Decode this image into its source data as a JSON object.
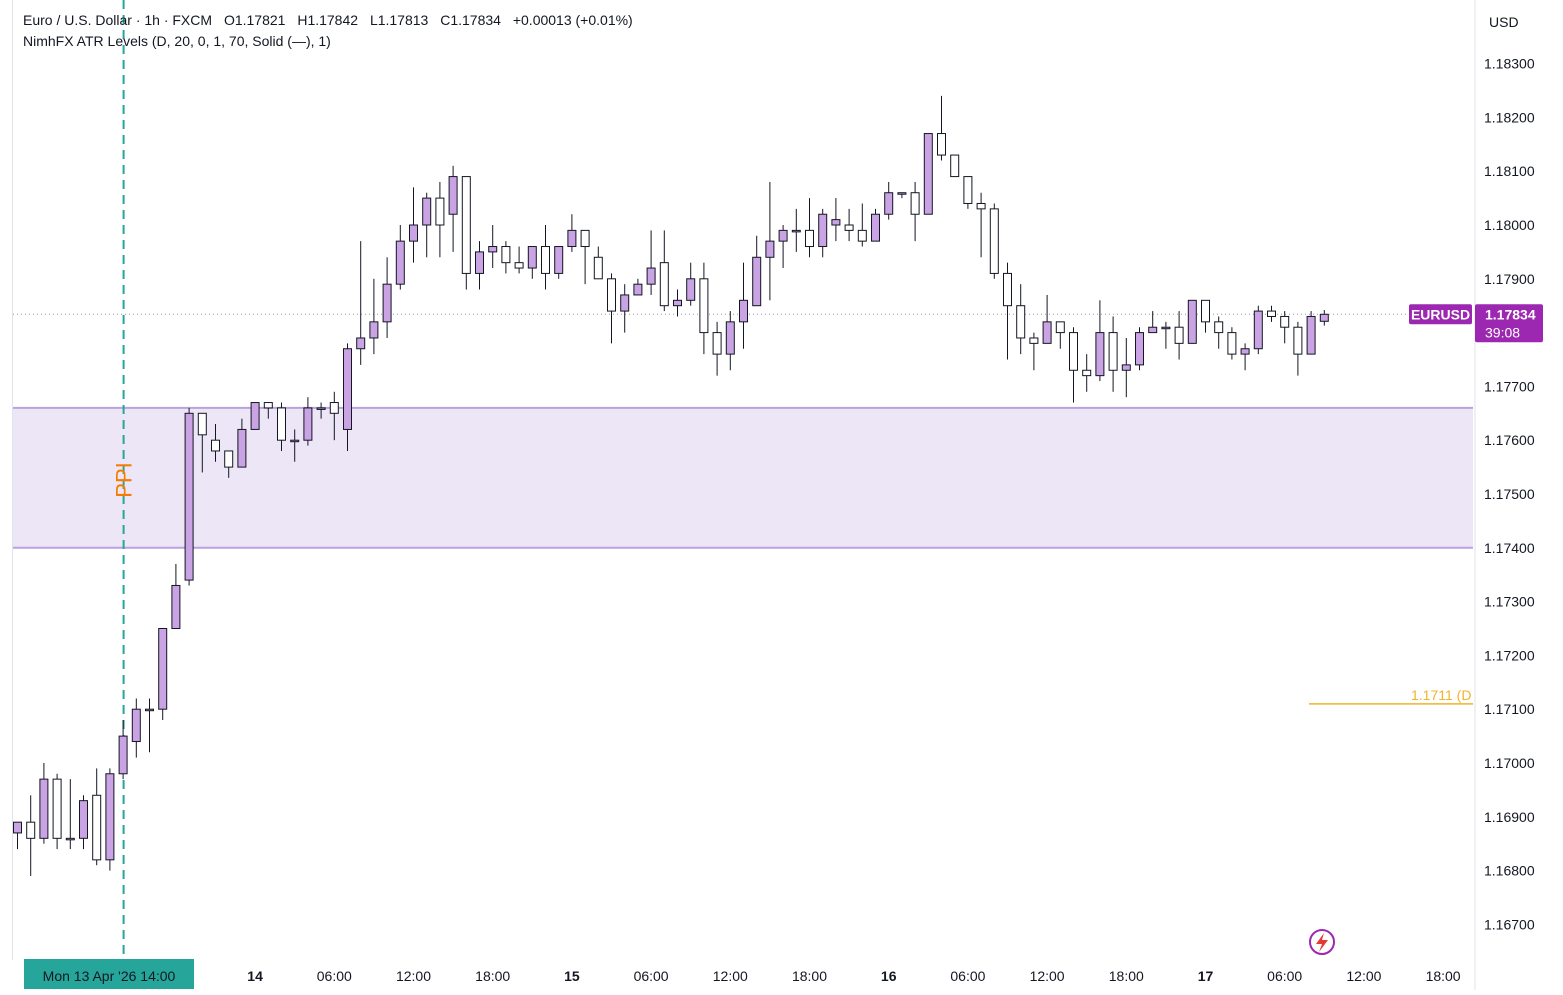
{
  "legend": {
    "symbol": "Euro / U.S. Dollar · 1h · FXCM",
    "open": "O1.17821",
    "high": "H1.17842",
    "low": "L1.17813",
    "close": "C1.17834",
    "change": "+0.00013 (+0.01%)",
    "indicator": "NimhFX ATR Levels (D, 20, 0, 1, 70, Solid (—), 1)"
  },
  "currency_label": "USD",
  "event_label": "PPI",
  "current_price": {
    "symbol": "EURUSD",
    "price": "1.17834",
    "countdown": "39:08"
  },
  "atr_level": {
    "value": 1.1711,
    "label": "1.1711 (D"
  },
  "colors": {
    "up_body": "#c9a3e3",
    "down_body": "#ffffff",
    "candle_border": "#131722",
    "zone_fill": "#ede6f7",
    "zone_line": "#b9a2dd",
    "accent_purple": "#9c27b0",
    "atr_line": "#f0b429",
    "event_line": "#26a69a",
    "event_text": "#f57c00",
    "axis_text": "#131722"
  },
  "chart_data": {
    "type": "candlestick",
    "instrument": "EURUSD",
    "timeframe": "1h",
    "ylim": [
      1.1662,
      1.1841
    ],
    "yticks": [
      1.167,
      1.168,
      1.169,
      1.17,
      1.171,
      1.172,
      1.173,
      1.174,
      1.175,
      1.176,
      1.177,
      1.178,
      1.179,
      1.18,
      1.181,
      1.182,
      1.183
    ],
    "ytick_labels": [
      "1.16700",
      "1.16800",
      "1.16900",
      "1.17000",
      "1.17100",
      "1.17200",
      "1.17300",
      "1.17400",
      "1.17500",
      "1.17600",
      "1.17700",
      "1.17800",
      "1.17900",
      "1.18000",
      "1.18100",
      "1.18200",
      "1.18300"
    ],
    "xticks": [
      {
        "bar": 8,
        "label": "Mon 13 Apr '26   14:00",
        "highlight": true
      },
      {
        "bar": 18,
        "label": "14",
        "bold": true
      },
      {
        "bar": 24,
        "label": "06:00"
      },
      {
        "bar": 30,
        "label": "12:00"
      },
      {
        "bar": 36,
        "label": "18:00"
      },
      {
        "bar": 42,
        "label": "15",
        "bold": true
      },
      {
        "bar": 48,
        "label": "06:00"
      },
      {
        "bar": 54,
        "label": "12:00"
      },
      {
        "bar": 60,
        "label": "18:00"
      },
      {
        "bar": 66,
        "label": "16",
        "bold": true
      },
      {
        "bar": 72,
        "label": "06:00"
      },
      {
        "bar": 78,
        "label": "12:00"
      },
      {
        "bar": 84,
        "label": "18:00"
      },
      {
        "bar": 90,
        "label": "17",
        "bold": true
      },
      {
        "bar": 96,
        "label": "06:00"
      },
      {
        "bar": 102,
        "label": "12:00"
      },
      {
        "bar": 108,
        "label": "18:00"
      }
    ],
    "zone": {
      "top": 1.1766,
      "bottom": 1.174
    },
    "event_bar": 8,
    "last_close": 1.17834,
    "candles": [
      [
        1.1687,
        1.1689,
        1.1684,
        1.1689
      ],
      [
        1.1689,
        1.1694,
        1.1679,
        1.1686
      ],
      [
        1.1686,
        1.17,
        1.1685,
        1.1697
      ],
      [
        1.1697,
        1.1698,
        1.1684,
        1.1686
      ],
      [
        1.1686,
        1.1697,
        1.1684,
        1.1686
      ],
      [
        1.1686,
        1.1694,
        1.1684,
        1.1693
      ],
      [
        1.1694,
        1.1699,
        1.1681,
        1.1682
      ],
      [
        1.1682,
        1.1699,
        1.168,
        1.1698
      ],
      [
        1.1698,
        1.1708,
        1.1697,
        1.1705
      ],
      [
        1.1704,
        1.1712,
        1.1701,
        1.171
      ],
      [
        1.171,
        1.1712,
        1.1702,
        1.171
      ],
      [
        1.171,
        1.1725,
        1.1708,
        1.1725
      ],
      [
        1.1725,
        1.1737,
        1.1725,
        1.1733
      ],
      [
        1.1734,
        1.1766,
        1.1733,
        1.1765
      ],
      [
        1.1765,
        1.1765,
        1.1754,
        1.1761
      ],
      [
        1.176,
        1.1763,
        1.1756,
        1.1758
      ],
      [
        1.1758,
        1.1758,
        1.1753,
        1.1755
      ],
      [
        1.1755,
        1.1764,
        1.1755,
        1.1762
      ],
      [
        1.1762,
        1.1767,
        1.1762,
        1.1767
      ],
      [
        1.1767,
        1.1767,
        1.1764,
        1.1766
      ],
      [
        1.1766,
        1.1767,
        1.1758,
        1.176
      ],
      [
        1.176,
        1.1762,
        1.1756,
        1.176
      ],
      [
        1.176,
        1.1768,
        1.1759,
        1.1766
      ],
      [
        1.1766,
        1.1767,
        1.1764,
        1.1766
      ],
      [
        1.1767,
        1.1769,
        1.176,
        1.1765
      ],
      [
        1.1762,
        1.1778,
        1.1758,
        1.1777
      ],
      [
        1.1777,
        1.1797,
        1.1774,
        1.1779
      ],
      [
        1.1779,
        1.179,
        1.1776,
        1.1782
      ],
      [
        1.1782,
        1.1794,
        1.1779,
        1.1789
      ],
      [
        1.1789,
        1.18,
        1.1788,
        1.1797
      ],
      [
        1.1797,
        1.1807,
        1.1793,
        1.18
      ],
      [
        1.18,
        1.1806,
        1.1794,
        1.1805
      ],
      [
        1.1805,
        1.1808,
        1.1794,
        1.18
      ],
      [
        1.1802,
        1.1811,
        1.1795,
        1.1809
      ],
      [
        1.1809,
        1.1809,
        1.1788,
        1.1791
      ],
      [
        1.1791,
        1.1797,
        1.1788,
        1.1795
      ],
      [
        1.1795,
        1.18,
        1.1792,
        1.1796
      ],
      [
        1.1796,
        1.1797,
        1.1791,
        1.1793
      ],
      [
        1.1793,
        1.1796,
        1.1791,
        1.1792
      ],
      [
        1.1792,
        1.1796,
        1.179,
        1.1796
      ],
      [
        1.1796,
        1.18,
        1.1788,
        1.1791
      ],
      [
        1.1791,
        1.1796,
        1.179,
        1.1796
      ],
      [
        1.1796,
        1.1802,
        1.1795,
        1.1799
      ],
      [
        1.1799,
        1.1799,
        1.1789,
        1.1796
      ],
      [
        1.1794,
        1.1796,
        1.179,
        1.179
      ],
      [
        1.179,
        1.1791,
        1.1778,
        1.1784
      ],
      [
        1.1784,
        1.1789,
        1.178,
        1.1787
      ],
      [
        1.1787,
        1.179,
        1.1787,
        1.1789
      ],
      [
        1.1789,
        1.1799,
        1.1787,
        1.1792
      ],
      [
        1.1793,
        1.1799,
        1.1784,
        1.1785
      ],
      [
        1.1785,
        1.1788,
        1.1783,
        1.1786
      ],
      [
        1.1786,
        1.1793,
        1.1785,
        1.179
      ],
      [
        1.179,
        1.1793,
        1.1776,
        1.178
      ],
      [
        1.178,
        1.1782,
        1.1772,
        1.1776
      ],
      [
        1.1776,
        1.1784,
        1.1773,
        1.1782
      ],
      [
        1.1782,
        1.1793,
        1.1777,
        1.1786
      ],
      [
        1.1785,
        1.1798,
        1.1785,
        1.1794
      ],
      [
        1.1794,
        1.1808,
        1.1786,
        1.1797
      ],
      [
        1.1797,
        1.18,
        1.1792,
        1.1799
      ],
      [
        1.1799,
        1.1803,
        1.1795,
        1.1799
      ],
      [
        1.1799,
        1.1805,
        1.1794,
        1.1796
      ],
      [
        1.1796,
        1.1803,
        1.1794,
        1.1802
      ],
      [
        1.18,
        1.1805,
        1.1797,
        1.1801
      ],
      [
        1.18,
        1.1803,
        1.1797,
        1.1799
      ],
      [
        1.1799,
        1.1804,
        1.1796,
        1.1797
      ],
      [
        1.1797,
        1.1803,
        1.1797,
        1.1802
      ],
      [
        1.1802,
        1.1808,
        1.1801,
        1.1806
      ],
      [
        1.1806,
        1.1806,
        1.1805,
        1.1806
      ],
      [
        1.1806,
        1.1808,
        1.1797,
        1.1802
      ],
      [
        1.1802,
        1.1817,
        1.1802,
        1.1817
      ],
      [
        1.1817,
        1.1824,
        1.1812,
        1.1813
      ],
      [
        1.1813,
        1.1813,
        1.1809,
        1.1809
      ],
      [
        1.1809,
        1.1809,
        1.1803,
        1.1804
      ],
      [
        1.1804,
        1.1806,
        1.1794,
        1.1803
      ],
      [
        1.1803,
        1.1804,
        1.179,
        1.1791
      ],
      [
        1.1791,
        1.1793,
        1.1775,
        1.1785
      ],
      [
        1.1785,
        1.1789,
        1.1776,
        1.1779
      ],
      [
        1.1779,
        1.178,
        1.1773,
        1.1778
      ],
      [
        1.1778,
        1.1787,
        1.1778,
        1.1782
      ],
      [
        1.1782,
        1.1782,
        1.1777,
        1.178
      ],
      [
        1.178,
        1.1781,
        1.1767,
        1.1773
      ],
      [
        1.1773,
        1.1776,
        1.1769,
        1.1772
      ],
      [
        1.1772,
        1.1786,
        1.1771,
        1.178
      ],
      [
        1.178,
        1.1783,
        1.1769,
        1.1773
      ],
      [
        1.1773,
        1.1779,
        1.1768,
        1.1774
      ],
      [
        1.1774,
        1.1781,
        1.1773,
        1.178
      ],
      [
        1.178,
        1.1784,
        1.178,
        1.1781
      ],
      [
        1.1781,
        1.1782,
        1.1777,
        1.1781
      ],
      [
        1.1781,
        1.1784,
        1.1775,
        1.1778
      ],
      [
        1.1778,
        1.1786,
        1.1778,
        1.1786
      ],
      [
        1.1786,
        1.1786,
        1.178,
        1.1782
      ],
      [
        1.1782,
        1.1783,
        1.1777,
        1.178
      ],
      [
        1.178,
        1.1781,
        1.1775,
        1.1776
      ],
      [
        1.1776,
        1.1778,
        1.1773,
        1.1777
      ],
      [
        1.1777,
        1.1785,
        1.1776,
        1.1784
      ],
      [
        1.1784,
        1.1785,
        1.1782,
        1.1783
      ],
      [
        1.1783,
        1.1784,
        1.1778,
        1.1781
      ],
      [
        1.1781,
        1.1782,
        1.1772,
        1.1776
      ],
      [
        1.1776,
        1.1784,
        1.1776,
        1.1783
      ],
      [
        1.17821,
        1.17842,
        1.17813,
        1.17834
      ]
    ]
  }
}
